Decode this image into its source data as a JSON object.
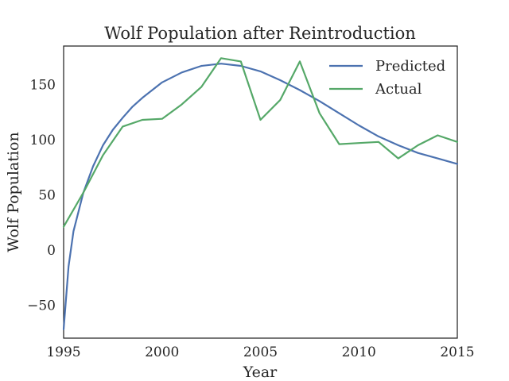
{
  "chart_data": {
    "type": "line",
    "title": "Wolf Population after Reintroduction",
    "xlabel": "Year",
    "ylabel": "Wolf Population",
    "xlim": [
      1995,
      2015
    ],
    "ylim": [
      -80,
      185
    ],
    "xticks": [
      1995,
      2000,
      2005,
      2010,
      2015
    ],
    "yticks": [
      -50,
      0,
      50,
      100,
      150
    ],
    "xtick_labels": [
      "1995",
      "2000",
      "2005",
      "2010",
      "2015"
    ],
    "ytick_labels": [
      "−50",
      "0",
      "50",
      "100",
      "150"
    ],
    "grid": false,
    "legend_position": "top-right",
    "series": [
      {
        "name": "Predicted",
        "color": "#4c72b0",
        "x": [
          1995,
          1995.25,
          1995.5,
          1996,
          1996.5,
          1997,
          1997.5,
          1998,
          1998.5,
          1999,
          2000,
          2001,
          2002,
          2003,
          2004,
          2005,
          2006,
          2007,
          2008,
          2009,
          2010,
          2011,
          2012,
          2013,
          2014,
          2015
        ],
        "values": [
          -72,
          -15,
          17,
          52,
          76,
          95,
          109,
          120,
          130,
          138,
          152,
          161,
          167,
          169,
          167,
          162,
          154,
          145,
          135,
          124,
          113,
          103,
          95,
          88,
          83,
          78
        ]
      },
      {
        "name": "Actual",
        "color": "#55a868",
        "x": [
          1995,
          1996,
          1997,
          1998,
          1999,
          2000,
          2001,
          2002,
          2003,
          2004,
          2005,
          2006,
          2007,
          2008,
          2009,
          2010,
          2011,
          2012,
          2013,
          2014,
          2015
        ],
        "values": [
          21,
          52,
          86,
          112,
          118,
          119,
          132,
          148,
          174,
          171,
          118,
          136,
          171,
          124,
          96,
          97,
          98,
          83,
          95,
          104,
          98
        ]
      }
    ]
  }
}
